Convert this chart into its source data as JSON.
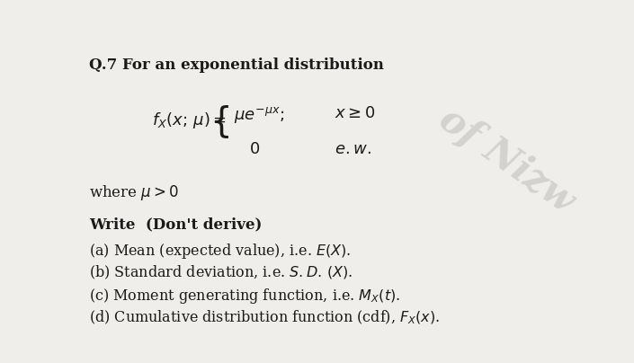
{
  "background_color": "#f0eeea",
  "title_line": "Q.7 For an exponential distribution",
  "where_line": "where $\\mu > 0$",
  "write_line": "Write  (Don't derive)",
  "items": [
    "(a) Mean (expected value), i.e. $E(X)$.",
    "(b) Standard deviation, i.e. $S.D.\\,(X)$.",
    "(c) Moment generating function, i.e. $M_X(t)$.",
    "(d) Cumulative distribution function (cdf), $F_X(x)$."
  ],
  "watermark_text": "of Nizw",
  "text_color": "#1a1a1a",
  "watermark_color": "#b0b0b0",
  "title_fontsize": 12,
  "formula_fontsize": 13,
  "body_fontsize": 11.5,
  "watermark_fontsize": 30,
  "watermark_alpha": 0.45,
  "watermark_rotation": -35
}
